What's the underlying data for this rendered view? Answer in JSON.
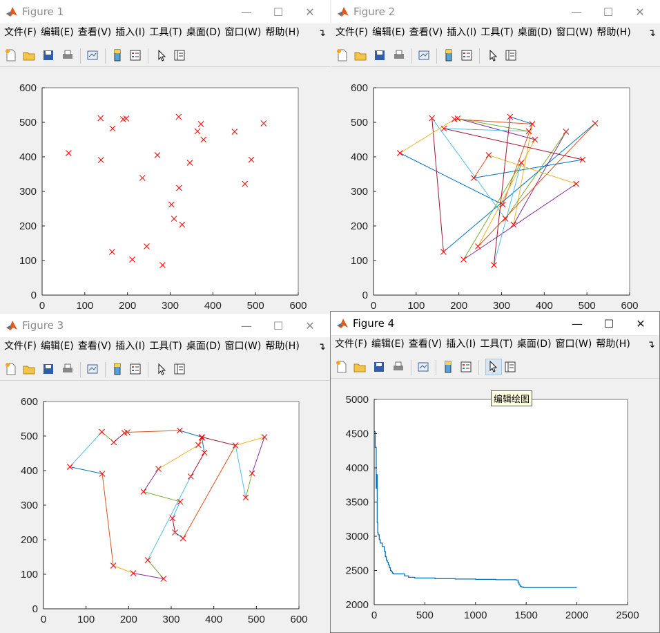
{
  "figures": [
    {
      "id": "f1",
      "title": "Figure 1",
      "active": false,
      "menus": [
        "文件(F)",
        "编辑(E)",
        "查看(V)",
        "插入(I)",
        "工具(T)",
        "桌面(D)",
        "窗口(W)",
        "帮助(H)"
      ],
      "controls": [
        "—",
        "☐",
        "✕"
      ],
      "chart_data": {
        "type": "scatter",
        "marker": "x",
        "color": "#ff0000",
        "xlim": [
          0,
          600
        ],
        "ylim": [
          0,
          600
        ],
        "xticks": [
          "0",
          "100",
          "200",
          "300",
          "400",
          "500",
          "600"
        ],
        "yticks": [
          "0",
          "100",
          "200",
          "300",
          "400",
          "500",
          "600"
        ],
        "points": [
          [
            62,
            411
          ],
          [
            138,
            391
          ],
          [
            137,
            512
          ],
          [
            165,
            482
          ],
          [
            190,
            509
          ],
          [
            197,
            511
          ],
          [
            320,
            516
          ],
          [
            372,
            495
          ],
          [
            378,
            450
          ],
          [
            364,
            474
          ],
          [
            451,
            473
          ],
          [
            519,
            497
          ],
          [
            490,
            392
          ],
          [
            475,
            322
          ],
          [
            346,
            383
          ],
          [
            270,
            405
          ],
          [
            235,
            339
          ],
          [
            321,
            310
          ],
          [
            303,
            262
          ],
          [
            309,
            221
          ],
          [
            328,
            204
          ],
          [
            245,
            141
          ],
          [
            211,
            103
          ],
          [
            164,
            125
          ],
          [
            282,
            87
          ]
        ]
      }
    },
    {
      "id": "f2",
      "title": "Figure 2",
      "active": false,
      "menus": [
        "文件(F)",
        "编辑(E)",
        "查看(V)",
        "插入(I)",
        "工具(T)",
        "桌面(D)",
        "窗口(W)",
        "帮助(H)"
      ],
      "controls": [
        "—",
        "☐",
        "✕"
      ],
      "chart_data": {
        "type": "line",
        "marker": "x",
        "marker_color": "#ff0000",
        "xlim": [
          0,
          600
        ],
        "ylim": [
          0,
          600
        ],
        "xticks": [
          "0",
          "100",
          "200",
          "300",
          "400",
          "500",
          "600"
        ],
        "yticks": [
          "0",
          "100",
          "200",
          "300",
          "400",
          "500",
          "600"
        ],
        "series_colors": [
          "#0072bd",
          "#d95319",
          "#edb120",
          "#7e2f8e",
          "#77ac30",
          "#4dbeee",
          "#a2142f"
        ],
        "path": [
          [
            62,
            411
          ],
          [
            303,
            262
          ],
          [
            372,
            495
          ],
          [
            328,
            204
          ],
          [
            451,
            473
          ],
          [
            309,
            221
          ],
          [
            137,
            512
          ],
          [
            164,
            125
          ],
          [
            519,
            497
          ],
          [
            245,
            141
          ],
          [
            378,
            450
          ],
          [
            197,
            511
          ],
          [
            364,
            474
          ],
          [
            165,
            482
          ],
          [
            490,
            392
          ],
          [
            235,
            339
          ],
          [
            270,
            405
          ],
          [
            475,
            322
          ],
          [
            211,
            103
          ],
          [
            346,
            383
          ],
          [
            282,
            87
          ],
          [
            320,
            516
          ],
          [
            372,
            495
          ],
          [
            190,
            509
          ],
          [
            62,
            411
          ]
        ]
      }
    },
    {
      "id": "f3",
      "title": "Figure 3",
      "active": false,
      "menus": [
        "文件(F)",
        "编辑(E)",
        "查看(V)",
        "插入(I)",
        "工具(T)",
        "桌面(D)",
        "窗口(W)",
        "帮助(H)"
      ],
      "controls": [
        "—",
        "☐",
        "✕"
      ],
      "chart_data": {
        "type": "line",
        "marker": "x",
        "marker_color": "#ff0000",
        "xlim": [
          0,
          600
        ],
        "ylim": [
          0,
          600
        ],
        "xticks": [
          "0",
          "100",
          "200",
          "300",
          "400",
          "500",
          "600"
        ],
        "yticks": [
          "0",
          "100",
          "200",
          "300",
          "400",
          "500",
          "600"
        ],
        "series_colors": [
          "#0072bd",
          "#d95319",
          "#edb120",
          "#7e2f8e",
          "#77ac30",
          "#4dbeee",
          "#a2142f"
        ],
        "path": [
          [
            62,
            411
          ],
          [
            138,
            391
          ],
          [
            164,
            125
          ],
          [
            211,
            103
          ],
          [
            282,
            87
          ],
          [
            245,
            141
          ],
          [
            346,
            383
          ],
          [
            378,
            452
          ],
          [
            372,
            495
          ],
          [
            364,
            474
          ],
          [
            270,
            405
          ],
          [
            235,
            339
          ],
          [
            321,
            310
          ],
          [
            303,
            262
          ],
          [
            309,
            221
          ],
          [
            328,
            204
          ],
          [
            451,
            473
          ],
          [
            519,
            497
          ],
          [
            490,
            392
          ],
          [
            475,
            322
          ],
          [
            451,
            473
          ],
          [
            372,
            497
          ],
          [
            320,
            516
          ],
          [
            197,
            511
          ],
          [
            190,
            509
          ],
          [
            165,
            482
          ],
          [
            137,
            512
          ],
          [
            62,
            411
          ]
        ]
      }
    },
    {
      "id": "f4",
      "title": "Figure 4",
      "active": true,
      "menus": [
        "文件(F)",
        "编辑(E)",
        "查看(V)",
        "插入(I)",
        "工具(T)",
        "桌面(D)",
        "窗口(W)",
        "帮助(H)"
      ],
      "controls": [
        "—",
        "☐",
        "✕"
      ],
      "tooltip": "编辑绘图",
      "chart_data": {
        "type": "line",
        "color": "#0072bd",
        "xlim": [
          0,
          2500
        ],
        "ylim": [
          2000,
          5000
        ],
        "xticks": [
          "0",
          "500",
          "1000",
          "1500",
          "2000",
          "2500"
        ],
        "yticks": [
          "2000",
          "2500",
          "3000",
          "3500",
          "4000",
          "4500",
          "5000"
        ],
        "x": [
          0,
          10,
          20,
          25,
          30,
          35,
          40,
          50,
          60,
          80,
          100,
          110,
          120,
          130,
          140,
          150,
          160,
          170,
          180,
          190,
          200,
          250,
          300,
          340,
          400,
          600,
          800,
          1000,
          1200,
          1400,
          1420,
          1430,
          1440,
          1450,
          1470,
          1500,
          2000
        ],
        "values": [
          4530,
          4300,
          3700,
          3900,
          3200,
          3050,
          3020,
          2950,
          2900,
          2850,
          2780,
          2700,
          2650,
          2620,
          2580,
          2540,
          2500,
          2480,
          2460,
          2450,
          2450,
          2450,
          2420,
          2400,
          2390,
          2380,
          2375,
          2370,
          2365,
          2360,
          2320,
          2290,
          2270,
          2260,
          2250,
          2250,
          2250
        ]
      }
    }
  ]
}
